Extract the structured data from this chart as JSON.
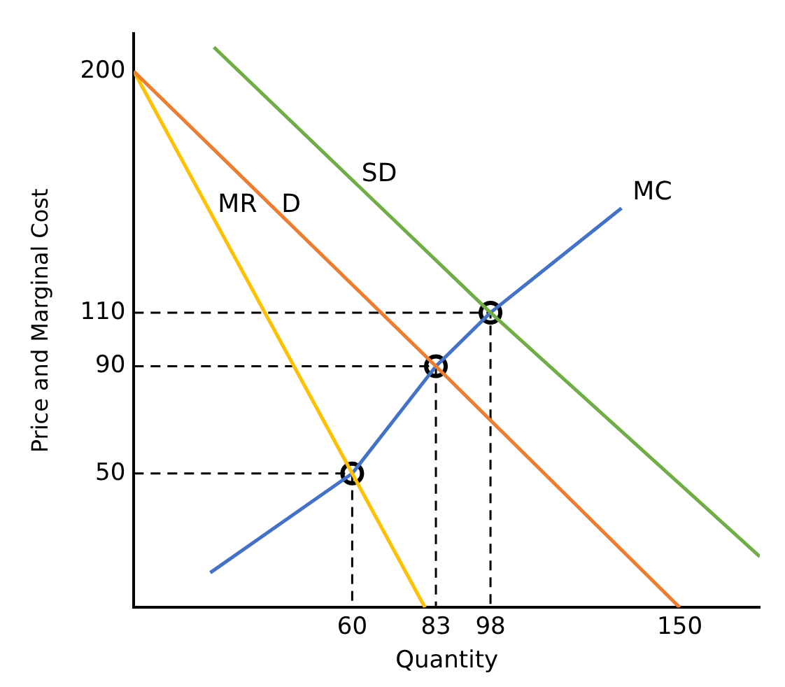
{
  "chart_data": {
    "type": "line",
    "xlabel": "Quantity",
    "ylabel": "Price and Marginal Cost",
    "xlim": [
      0,
      172
    ],
    "ylim": [
      0,
      214
    ],
    "xticks": [
      60,
      83,
      98,
      150
    ],
    "yticks": [
      50,
      90,
      110,
      200
    ],
    "grid": false,
    "legend": false,
    "marker": "none",
    "line_style": "solid",
    "series": [
      {
        "name": "SD",
        "color": "#70ad47",
        "x": [
          22,
          98,
          172
        ],
        "values": [
          209,
          110,
          19
        ]
      },
      {
        "name": "D",
        "color": "#ed7d31",
        "x": [
          0,
          83,
          150
        ],
        "values": [
          200,
          90,
          0
        ]
      },
      {
        "name": "MR",
        "color": "#ffc000",
        "x": [
          0,
          60,
          80
        ],
        "values": [
          200,
          50,
          0
        ]
      },
      {
        "name": "MC",
        "color": "#4472c4",
        "x": [
          21,
          60,
          83,
          98,
          134
        ],
        "values": [
          13,
          50,
          90,
          110,
          149
        ]
      },
      {
        "line_style": "dashed",
        "color": "#000000",
        "x": [
          0,
          60,
          60
        ],
        "values": [
          50,
          50,
          0
        ]
      },
      {
        "line_style": "dashed",
        "color": "#000000",
        "x": [
          0,
          83,
          83
        ],
        "values": [
          90,
          90,
          0
        ]
      },
      {
        "line_style": "dashed",
        "color": "#000000",
        "x": [
          0,
          98,
          98
        ],
        "values": [
          110,
          110,
          0
        ]
      },
      {
        "type": "scatter",
        "marker": "circle",
        "color": "#000000",
        "x": [
          60,
          83,
          98
        ],
        "values": [
          50,
          90,
          110
        ]
      }
    ]
  }
}
